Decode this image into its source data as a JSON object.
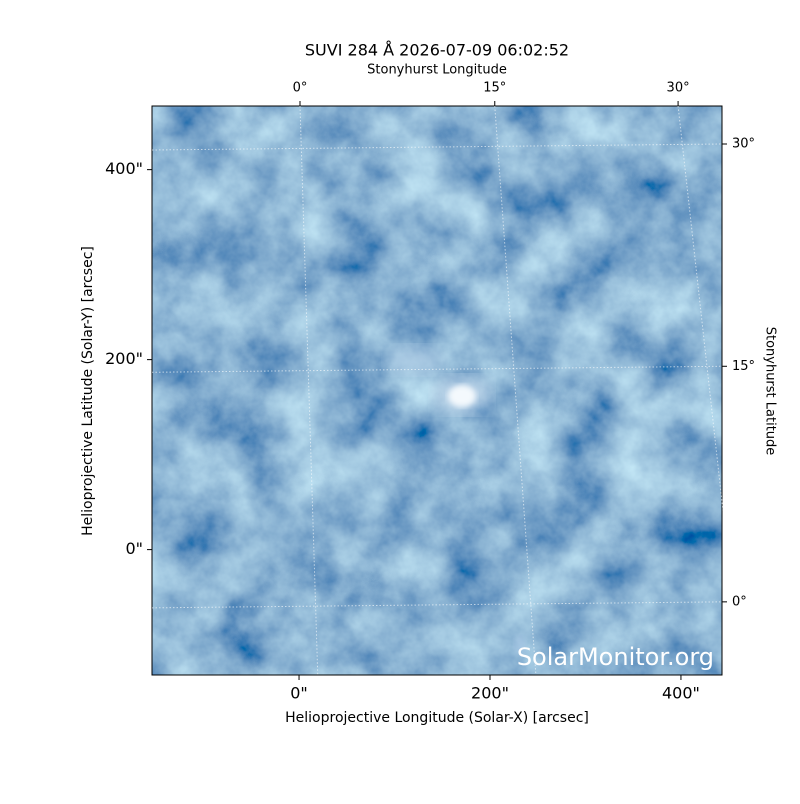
{
  "chart_data": {
    "type": "image",
    "title": "SUVI 284 Å 2026-07-09 06:02:52",
    "xlabel": "Helioprojective Longitude (Solar-X) [arcsec]",
    "ylabel": "Helioprojective Latitude (Solar-Y) [arcsec]",
    "x2label": "Stonyhurst Longitude",
    "y2label": "Stonyhurst Latitude",
    "watermark": "SolarMonitor.org",
    "xlim": [
      -154,
      443
    ],
    "ylim": [
      -132,
      467
    ],
    "xticks": [
      {
        "value": 0,
        "label": "0\""
      },
      {
        "value": 200,
        "label": "200\""
      },
      {
        "value": 400,
        "label": "400\""
      }
    ],
    "yticks": [
      {
        "value": 0,
        "label": "0\""
      },
      {
        "value": 200,
        "label": "200\""
      },
      {
        "value": 400,
        "label": "400\""
      }
    ],
    "x2ticks": [
      {
        "value": 1,
        "label": "0°"
      },
      {
        "value": 205,
        "label": "15°"
      },
      {
        "value": 397,
        "label": "30°"
      }
    ],
    "y2ticks": [
      {
        "value": -55,
        "label": "0°"
      },
      {
        "value": 193,
        "label": "15°"
      },
      {
        "value": 427,
        "label": "30°"
      }
    ],
    "grid": true,
    "color": "#3f74a8"
  }
}
